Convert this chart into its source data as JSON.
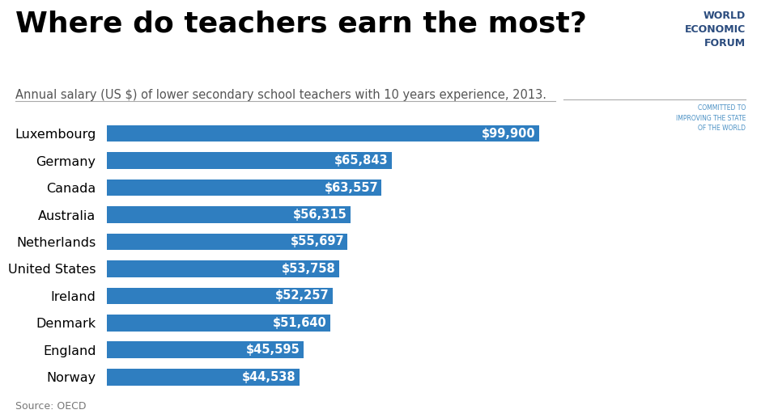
{
  "title": "Where do teachers earn the most?",
  "subtitle": "Annual salary (US $) of lower secondary school teachers with 10 years experience, 2013.",
  "source": "Source: OECD",
  "categories": [
    "Norway",
    "England",
    "Denmark",
    "Ireland",
    "United States",
    "Netherlands",
    "Australia",
    "Canada",
    "Germany",
    "Luxembourg"
  ],
  "values": [
    44538,
    45595,
    51640,
    52257,
    53758,
    55697,
    56315,
    63557,
    65843,
    99900
  ],
  "labels": [
    "$44,538",
    "$45,595",
    "$51,640",
    "$52,257",
    "$53,758",
    "$55,697",
    "$56,315",
    "$63,557",
    "$65,843",
    "$99,900"
  ],
  "bar_color": "#2F7EC0",
  "background_color": "#FFFFFF",
  "label_color": "#FFFFFF",
  "title_color": "#000000",
  "subtitle_color": "#555555",
  "source_color": "#777777",
  "title_fontsize": 26,
  "subtitle_fontsize": 10.5,
  "label_fontsize": 10.5,
  "category_fontsize": 11.5,
  "xlim": [
    0,
    102000
  ],
  "figsize": [
    9.4,
    5.12
  ],
  "dpi": 100,
  "wef_main": "WORLD\nECONOMIC\nFORUM",
  "wef_sub": "COMMITTED TO\nIMPROVING THE STATE\nOF THE WORLD",
  "wef_main_color": "#2B4C7E",
  "wef_sub_color": "#4A90C4",
  "wef_line_color": "#AAAAAA"
}
